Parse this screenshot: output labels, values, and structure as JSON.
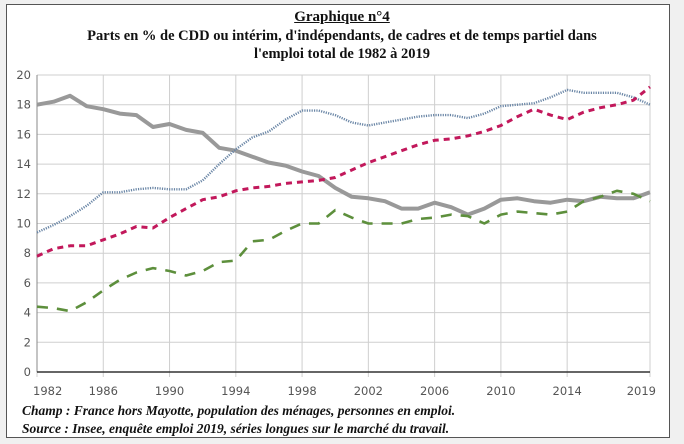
{
  "chart_data": {
    "type": "line",
    "title": "Graphique n°4",
    "subtitle_line1": "Parts en % de CDD ou intérim, d'indépendants, de cadres et de temps partiel dans",
    "subtitle_line2": "l'emploi total de 1982 à 2019",
    "xlabel": "",
    "ylabel": "",
    "xlim": [
      1982,
      2019
    ],
    "ylim": [
      0,
      20
    ],
    "grid": true,
    "legend": "none",
    "x_ticks": [
      "1982",
      "1986",
      "1990",
      "1994",
      "1998",
      "2002",
      "2006",
      "2010",
      "2014",
      "2019"
    ],
    "y_ticks": [
      "0",
      "2",
      "4",
      "6",
      "8",
      "10",
      "12",
      "14",
      "16",
      "18",
      "20"
    ],
    "x": [
      1982,
      1983,
      1984,
      1985,
      1986,
      1987,
      1988,
      1989,
      1990,
      1991,
      1992,
      1993,
      1994,
      1995,
      1996,
      1997,
      1998,
      1999,
      2000,
      2001,
      2002,
      2003,
      2004,
      2005,
      2006,
      2007,
      2008,
      2009,
      2010,
      2011,
      2012,
      2013,
      2014,
      2015,
      2016,
      2017,
      2018,
      2019
    ],
    "series": [
      {
        "name": "gray-solid",
        "color": "#999999",
        "style": "solid",
        "values": [
          18.0,
          18.2,
          18.6,
          17.9,
          17.7,
          17.4,
          17.3,
          16.5,
          16.7,
          16.3,
          16.1,
          15.1,
          14.9,
          14.5,
          14.1,
          13.9,
          13.5,
          13.2,
          12.4,
          11.8,
          11.7,
          11.5,
          11.0,
          11.0,
          11.4,
          11.1,
          10.6,
          11.0,
          11.6,
          11.7,
          11.5,
          11.4,
          11.6,
          11.5,
          11.8,
          11.7,
          11.7,
          12.1
        ]
      },
      {
        "name": "blue-dotted",
        "color": "#6a86a6",
        "style": "dotted",
        "values": [
          9.4,
          9.9,
          10.5,
          11.2,
          12.1,
          12.1,
          12.3,
          12.4,
          12.3,
          12.3,
          12.9,
          14.0,
          15.0,
          15.8,
          16.2,
          17.0,
          17.6,
          17.6,
          17.3,
          16.8,
          16.6,
          16.8,
          17.0,
          17.2,
          17.3,
          17.3,
          17.1,
          17.4,
          17.9,
          18.0,
          18.1,
          18.5,
          19.0,
          18.8,
          18.8,
          18.8,
          18.5,
          18.0
        ]
      },
      {
        "name": "red-dashed",
        "color": "#c2185b",
        "style": "dashed",
        "values": [
          7.8,
          8.3,
          8.5,
          8.5,
          8.9,
          9.3,
          9.8,
          9.7,
          10.4,
          11.0,
          11.6,
          11.8,
          12.2,
          12.4,
          12.5,
          12.7,
          12.8,
          12.9,
          13.1,
          13.6,
          14.1,
          14.5,
          14.9,
          15.3,
          15.6,
          15.7,
          15.9,
          16.2,
          16.6,
          17.2,
          17.7,
          17.3,
          17.0,
          17.5,
          17.8,
          18.0,
          18.3,
          19.2
        ]
      },
      {
        "name": "green-longdash",
        "color": "#5d8f3c",
        "style": "longdash",
        "values": [
          4.4,
          4.3,
          4.1,
          4.7,
          5.5,
          6.2,
          6.7,
          7.0,
          6.8,
          6.5,
          6.8,
          7.4,
          7.5,
          8.8,
          8.9,
          9.5,
          10.0,
          10.0,
          10.9,
          10.4,
          10.0,
          10.0,
          10.0,
          10.3,
          10.4,
          10.6,
          10.5,
          10.0,
          10.6,
          10.8,
          10.7,
          10.6,
          10.8,
          11.5,
          11.8,
          12.2,
          12.0,
          11.5
        ]
      }
    ]
  },
  "notes": {
    "champ": "Champ : France hors Mayotte, population des ménages, personnes en emploi.",
    "source": "Source : Insee, enquête emploi 2019, séries longues sur le marché du travail."
  }
}
